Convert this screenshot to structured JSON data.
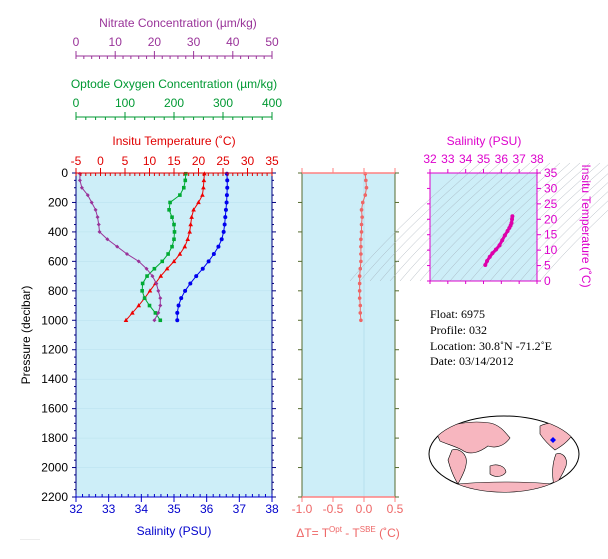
{
  "chart_data": [
    {
      "type": "line",
      "panel": "main-profile",
      "ylabel": "Pressure (decibar)",
      "yticks": [
        0,
        200,
        400,
        600,
        800,
        1000,
        1200,
        1400,
        1600,
        1800,
        2000,
        2200
      ],
      "ylim": [
        0,
        2200
      ],
      "y_reversed": true,
      "axes": {
        "salinity": {
          "label": "Salinity (PSU)",
          "ticks": [
            32,
            33,
            34,
            35,
            36,
            37,
            38
          ],
          "lim": [
            32,
            38
          ],
          "color": "#0000cc"
        },
        "temperature": {
          "label": "Insitu Temperature (˚C)",
          "ticks": [
            -5,
            0,
            5,
            10,
            15,
            20,
            25,
            30,
            35
          ],
          "lim": [
            -5,
            35
          ],
          "color": "#e00000"
        },
        "oxygen": {
          "label": "Optode Oxygen Concentration (µm/kg)",
          "ticks": [
            0,
            100,
            200,
            300,
            400
          ],
          "lim": [
            0,
            400
          ],
          "color": "#009933"
        },
        "nitrate": {
          "label": "Nitrate Concentration (µm/kg)",
          "ticks": [
            0,
            10,
            20,
            30,
            40,
            50
          ],
          "lim": [
            0,
            50
          ],
          "color": "#993399"
        }
      },
      "series": [
        {
          "axis": "salinity",
          "marker": "circle",
          "color": "#0000ee",
          "pressure": [
            5,
            50,
            100,
            150,
            200,
            250,
            300,
            350,
            400,
            450,
            500,
            550,
            600,
            650,
            700,
            750,
            800,
            850,
            900,
            950,
            1000
          ],
          "values": [
            36.62,
            36.63,
            36.63,
            36.62,
            36.61,
            36.59,
            36.57,
            36.55,
            36.52,
            36.46,
            36.36,
            36.22,
            36.06,
            35.88,
            35.68,
            35.5,
            35.34,
            35.22,
            35.14,
            35.1,
            35.1
          ]
        },
        {
          "axis": "temperature",
          "marker": "triangle",
          "color": "#ee0000",
          "pressure": [
            5,
            50,
            100,
            150,
            200,
            250,
            300,
            350,
            400,
            450,
            500,
            550,
            600,
            650,
            700,
            750,
            800,
            850,
            900,
            950,
            1000
          ],
          "values": [
            21.2,
            21.1,
            21.0,
            20.8,
            20.0,
            19.0,
            18.6,
            18.4,
            18.2,
            17.8,
            17.2,
            16.2,
            15.0,
            13.6,
            12.3,
            11.2,
            10.1,
            9.0,
            7.8,
            6.5,
            5.2
          ]
        },
        {
          "axis": "oxygen",
          "marker": "square",
          "color": "#00aa33",
          "pressure": [
            5,
            50,
            100,
            150,
            200,
            250,
            300,
            350,
            400,
            450,
            500,
            550,
            600,
            650,
            700,
            750,
            800,
            850,
            900,
            950,
            1000
          ],
          "values": [
            224,
            223,
            220,
            212,
            192,
            190,
            196,
            200,
            201,
            200,
            196,
            188,
            176,
            160,
            145,
            136,
            135,
            140,
            150,
            162,
            172
          ]
        },
        {
          "axis": "nitrate",
          "marker": "diamond",
          "color": "#993399",
          "pressure": [
            5,
            50,
            100,
            150,
            200,
            250,
            300,
            350,
            400,
            450,
            500,
            550,
            600,
            650,
            700,
            750,
            800,
            850,
            900,
            950,
            1000
          ],
          "values": [
            1,
            1,
            1.5,
            3,
            4,
            5,
            5.5,
            5.8,
            6,
            8,
            10.5,
            13,
            16,
            18,
            19.5,
            20.5,
            21,
            21.5,
            21.5,
            21,
            20
          ]
        }
      ]
    },
    {
      "type": "line",
      "panel": "delta-t",
      "xlabel": "ΔT= T^Opt - T^SBE (˚C)",
      "xticks": [
        "-1.0",
        "-0.5",
        "0.0",
        "0.5"
      ],
      "xlim": [
        -1.0,
        0.5
      ],
      "color": "#ee6666",
      "series": [
        {
          "pressure": [
            5,
            50,
            100,
            150,
            200,
            250,
            300,
            350,
            400,
            450,
            500,
            550,
            600,
            650,
            700,
            750,
            800,
            850,
            900,
            950,
            1000
          ],
          "values": [
            0.02,
            0.03,
            0.04,
            0.02,
            -0.02,
            -0.04,
            -0.03,
            -0.04,
            -0.04,
            -0.05,
            -0.05,
            -0.05,
            -0.05,
            -0.06,
            -0.07,
            -0.07,
            -0.07,
            -0.07,
            -0.06,
            -0.06,
            -0.05
          ]
        }
      ]
    },
    {
      "type": "scatter",
      "panel": "ts-diagram",
      "xlabel": "Salinity (PSU)",
      "ylabel": "Insitu Temperature (˚C)",
      "xticks": [
        32,
        33,
        34,
        35,
        36,
        37,
        38
      ],
      "yticks": [
        0,
        5,
        10,
        15,
        20,
        25,
        30,
        35
      ],
      "xlim": [
        32,
        38
      ],
      "ylim": [
        0,
        35
      ],
      "color": "#dd00aa",
      "points": {
        "salinity": [
          35.1,
          35.2,
          35.35,
          35.5,
          35.7,
          35.9,
          36.05,
          36.2,
          36.35,
          36.45,
          36.52,
          36.57,
          36.6,
          36.62
        ],
        "temperature": [
          5.2,
          6.5,
          7.8,
          9.0,
          10.2,
          11.6,
          13.2,
          14.8,
          16.2,
          17.2,
          18.0,
          18.8,
          20.0,
          21.0
        ]
      }
    }
  ],
  "info": {
    "float": "Float:  6975",
    "profile": "Profile:  032",
    "location": "Location:  30.8˚N  -71.2˚E",
    "date": "Date:  03/14/2012"
  },
  "colors": {
    "plot_bg": "#cdeef8",
    "axis_main": "#000080",
    "axis_delta": "#ff8080",
    "axis_ts": "#dd00cc",
    "map_land": "#f7b6bf",
    "map_ocean": "#ffffff",
    "float_marker": "#0000ff"
  }
}
